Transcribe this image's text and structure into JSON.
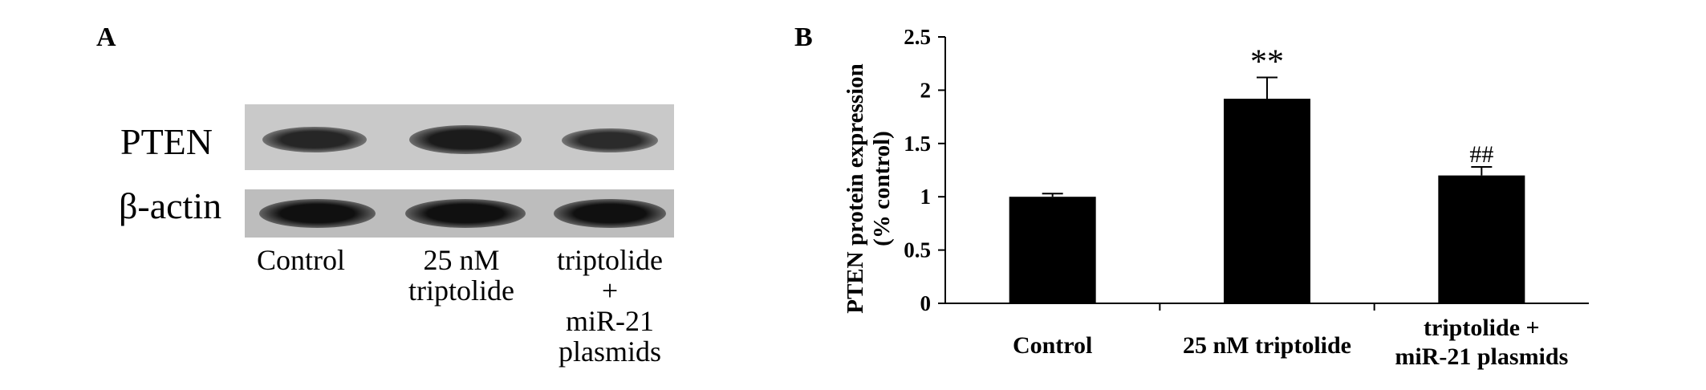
{
  "panel_a": {
    "letter": "A",
    "rows": [
      {
        "label": "PTEN",
        "band_intensity": [
          0.75,
          0.85,
          0.7
        ]
      },
      {
        "label": "β-actin",
        "band_intensity": [
          0.95,
          0.95,
          0.95
        ]
      }
    ],
    "lanes": [
      {
        "lines": [
          "Control"
        ]
      },
      {
        "lines": [
          "25 nM",
          "triptolide"
        ]
      },
      {
        "lines": [
          "triptolide",
          "+",
          "miR-21",
          "plasmids"
        ]
      }
    ]
  },
  "panel_b": {
    "letter": "B",
    "chart_data": {
      "type": "bar",
      "categories": [
        {
          "lines": [
            "Control"
          ]
        },
        {
          "lines": [
            "25 nM triptolide"
          ]
        },
        {
          "lines": [
            "triptolide +",
            "miR-21 plasmids"
          ]
        }
      ],
      "values": [
        1.0,
        1.92,
        1.2
      ],
      "errors": [
        0.03,
        0.2,
        0.08
      ],
      "annotations": [
        "",
        "**",
        "##"
      ],
      "ylabel_lines": [
        "PTEN protein expression",
        "(% control)"
      ],
      "xlabel": "",
      "ylim": [
        0,
        2.5
      ],
      "yticks": [
        "0",
        "0.5",
        "1",
        "1.5",
        "2",
        "2.5"
      ],
      "bar_color": "#000000",
      "grid": false,
      "legend": "none"
    }
  }
}
